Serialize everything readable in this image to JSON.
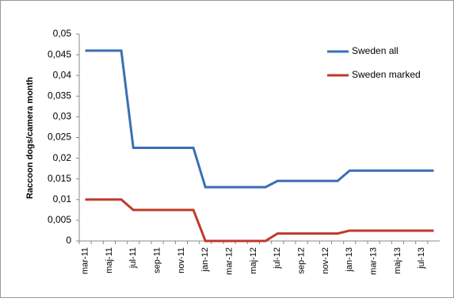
{
  "chart_data": {
    "type": "line",
    "y_label": "Raccoon dogs/camera month",
    "categories": [
      "mar-11",
      null,
      "maj-11",
      null,
      "jul-11",
      null,
      "sep-11",
      null,
      "nov-11",
      null,
      "jan-12",
      null,
      "mar-12",
      null,
      "maj-12",
      null,
      "jul-12",
      null,
      "sep-12",
      null,
      "nov-12",
      null,
      "jan-13",
      null,
      "mar-13",
      null,
      "maj-13",
      null,
      "jul-13",
      null
    ],
    "series": [
      {
        "name": "Sweden all",
        "color": "#3a6fb5",
        "values": [
          0.046,
          0.046,
          0.046,
          0.046,
          0.0225,
          0.0225,
          0.0225,
          0.0225,
          0.0225,
          0.0225,
          0.013,
          0.013,
          0.013,
          0.013,
          0.013,
          0.013,
          0.0145,
          0.0145,
          0.0145,
          0.0145,
          0.0145,
          0.0145,
          0.017,
          0.017,
          0.017,
          0.017,
          0.017,
          0.017,
          0.017,
          0.017
        ]
      },
      {
        "name": "Sweden marked",
        "color": "#c0392b",
        "values": [
          0.01,
          0.01,
          0.01,
          0.01,
          0.0075,
          0.0075,
          0.0075,
          0.0075,
          0.0075,
          0.0075,
          0,
          0,
          0,
          0,
          0,
          0,
          0.0018,
          0.0018,
          0.0018,
          0.0018,
          0.0018,
          0.0018,
          0.0025,
          0.0025,
          0.0025,
          0.0025,
          0.0025,
          0.0025,
          0.0025,
          0.0025
        ]
      }
    ],
    "ylim": [
      0,
      0.05
    ],
    "yticks": [
      0,
      {
        "value": 0.005,
        "label": "0,005"
      },
      {
        "value": 0.01,
        "label": "0,01"
      },
      {
        "value": 0.015,
        "label": "0,015"
      },
      {
        "value": 0.02,
        "label": "0,02"
      },
      {
        "value": 0.025,
        "label": "0,025"
      },
      {
        "value": 0.03,
        "label": "0,03"
      },
      {
        "value": 0.035,
        "label": "0,035"
      },
      {
        "value": 0.04,
        "label": "0,04"
      },
      {
        "value": 0.045,
        "label": "0,045"
      },
      {
        "value": 0.05,
        "label": "0,05"
      }
    ],
    "legend": "upper right"
  }
}
